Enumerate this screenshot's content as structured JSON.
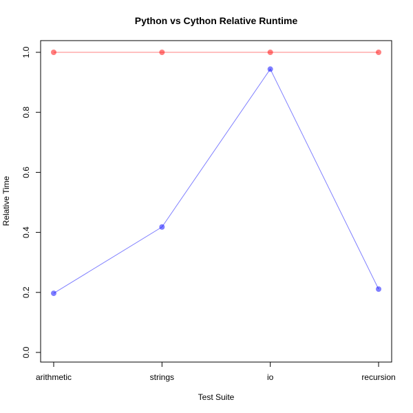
{
  "chart_data": {
    "type": "line",
    "title": "Python vs Cython Relative Runtime",
    "xlabel": "Test Suite",
    "ylabel": "Relative Time",
    "categories": [
      "arithmetic",
      "strings",
      "io",
      "recursion"
    ],
    "ylim": [
      0.0,
      1.0
    ],
    "yticks": [
      "0.0",
      "0.2",
      "0.4",
      "0.6",
      "0.8",
      "1.0"
    ],
    "grid": false,
    "series": [
      {
        "values": [
          1.0,
          1.0,
          1.0,
          1.0
        ],
        "color": "#ff0000"
      },
      {
        "values": [
          0.197,
          0.418,
          0.944,
          0.211
        ],
        "color": "#0000ff"
      }
    ]
  }
}
